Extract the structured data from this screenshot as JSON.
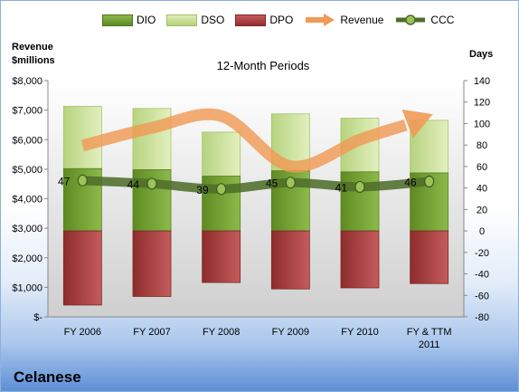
{
  "chart_data": {
    "type": "bar",
    "title": "12-Month Periods",
    "company": "Celanese",
    "left_axis_title": [
      "Revenue",
      "$millions"
    ],
    "right_axis_title": "Days",
    "categories": [
      [
        "FY 2006"
      ],
      [
        "FY 2007"
      ],
      [
        "FY 2008"
      ],
      [
        "FY 2009"
      ],
      [
        "FY 2010"
      ],
      [
        "FY & TTM",
        "2011"
      ]
    ],
    "left_axis": {
      "min": 0,
      "max": 8000,
      "step": 1000,
      "tick_labels": [
        "$-",
        "$1,000",
        "$2,000",
        "$3,000",
        "$4,000",
        "$5,000",
        "$6,000",
        "$7,000",
        "$8,000"
      ]
    },
    "right_axis": {
      "min": -80,
      "max": 140,
      "step": 20,
      "tick_labels": [
        "-80",
        "-60",
        "-40",
        "-20",
        "0",
        "20",
        "40",
        "60",
        "80",
        "100",
        "120",
        "140"
      ]
    },
    "legend_position": "top",
    "grid": false,
    "series": [
      {
        "name": "DIO",
        "axis": "days",
        "color": "#6f9a2e",
        "values": [
          58,
          57,
          51,
          56,
          55,
          54
        ]
      },
      {
        "name": "DSO",
        "axis": "days",
        "color": "#c4dd8b",
        "values": [
          58,
          57,
          41,
          53,
          50,
          49
        ]
      },
      {
        "name": "DPO",
        "axis": "days",
        "color": "#a83b3b",
        "values": [
          -69,
          -61,
          -48,
          -54,
          -53,
          -49
        ]
      },
      {
        "name": "Revenue",
        "axis": "revenue",
        "color": "#f09a55",
        "values": [
          5800,
          6400,
          6800,
          5100,
          6000,
          6800
        ]
      },
      {
        "name": "CCC",
        "axis": "days",
        "color": "#4f6e2a",
        "values": [
          47,
          44,
          39,
          45,
          41,
          46
        ]
      }
    ],
    "data_labels": {
      "CCC": [
        "47",
        "44",
        "39",
        "45",
        "41",
        "46"
      ]
    }
  }
}
